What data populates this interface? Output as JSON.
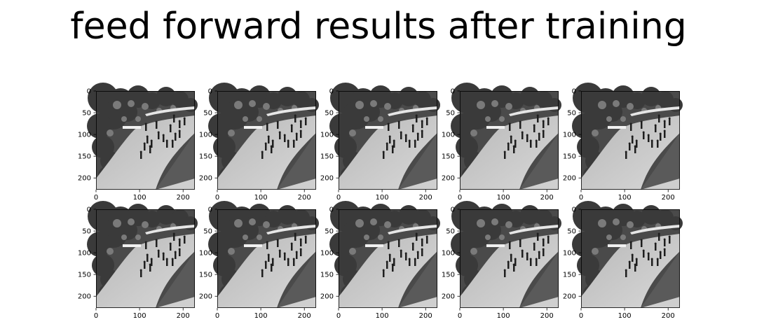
{
  "figure": {
    "title": "feed forward results after training"
  },
  "chart_data": {
    "type": "image-grid",
    "title": "feed forward results after training",
    "rows": 2,
    "cols": 5,
    "image_description": "grayscale surveillance frame of pedestrians walking on a curved walkway among trees",
    "xlim": [
      0,
      227
    ],
    "ylim": [
      227,
      0
    ],
    "xticks": [
      0,
      100,
      200
    ],
    "yticks": [
      0,
      50,
      100,
      150,
      200
    ],
    "xlabel": "",
    "ylabel": "",
    "colormap": "gray"
  }
}
